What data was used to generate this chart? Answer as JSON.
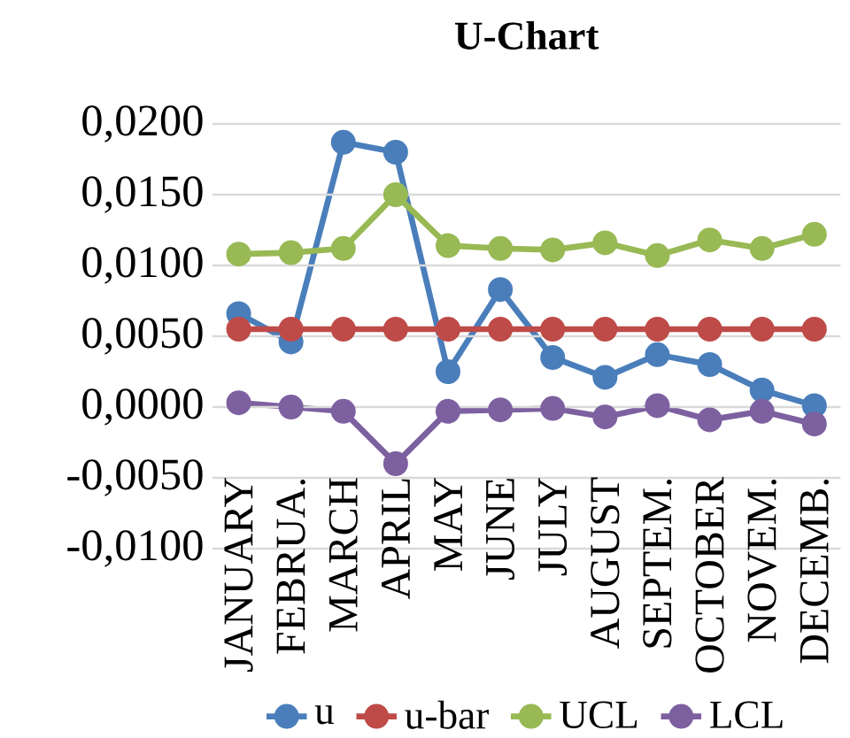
{
  "chart_data": {
    "type": "line",
    "title": "U-Chart",
    "categories": [
      "JANUARY",
      "FEBRUA.",
      "MARCH",
      "APRIL",
      "MAY",
      "JUNE",
      "JULY",
      "AUGUST",
      "SEPTEM.",
      "OCTOBER",
      "NOVEM.",
      "DECEMB."
    ],
    "series": [
      {
        "name": "u",
        "color": "#4a7ebb",
        "values": [
          0.0066,
          0.0046,
          0.0187,
          0.018,
          0.0025,
          0.0083,
          0.0035,
          0.0021,
          0.0037,
          0.003,
          0.0012,
          0.0001
        ]
      },
      {
        "name": "u-bar",
        "color": "#be4b48",
        "values": [
          0.0055,
          0.0055,
          0.0055,
          0.0055,
          0.0055,
          0.0055,
          0.0055,
          0.0055,
          0.0055,
          0.0055,
          0.0055,
          0.0055
        ]
      },
      {
        "name": "UCL",
        "color": "#98b954",
        "values": [
          0.0108,
          0.0109,
          0.0112,
          0.015,
          0.0114,
          0.0112,
          0.0111,
          0.0116,
          0.0107,
          0.0118,
          0.0112,
          0.0122
        ]
      },
      {
        "name": "LCL",
        "color": "#7d60a0",
        "values": [
          0.0003,
          0.0,
          -0.0003,
          -0.004,
          -0.0003,
          -0.0002,
          -0.0001,
          -0.0007,
          0.0001,
          -0.0009,
          -0.0003,
          -0.0012
        ]
      }
    ],
    "ylim": [
      -0.01,
      0.02
    ],
    "yticks": [
      {
        "value": -0.01,
        "label": "-0,0100"
      },
      {
        "value": -0.005,
        "label": "-0,0050"
      },
      {
        "value": 0,
        "label": "0,0000"
      },
      {
        "value": 0.005,
        "label": "0,0050"
      },
      {
        "value": 0.01,
        "label": "0,0100"
      },
      {
        "value": 0.015,
        "label": "0,0150"
      },
      {
        "value": 0.02,
        "label": "0,0200"
      }
    ],
    "grid": "y",
    "legend": "bottom",
    "marker": "circle",
    "line_style": "solid"
  }
}
